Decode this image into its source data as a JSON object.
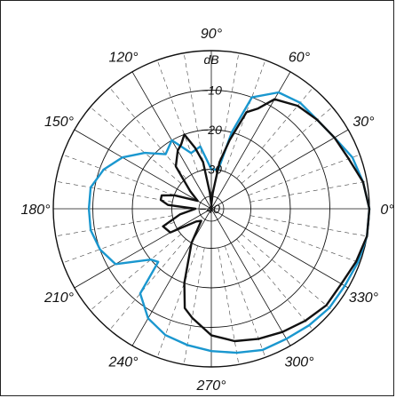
{
  "chart_data": {
    "type": "polar",
    "unit": "dB",
    "r_min_db": -40,
    "r_max_db": 0,
    "rings_db": [
      -40,
      -30,
      -20,
      -10,
      0
    ],
    "ring_labels": [
      "-40",
      "-30",
      "-20",
      "-10"
    ],
    "angle_labels": [
      "0°",
      "30°",
      "60°",
      "90°",
      "120°",
      "150°",
      "180°",
      "210°",
      "240°",
      "270°",
      "300°",
      "330°"
    ],
    "angle_label_degrees": [
      0,
      30,
      60,
      90,
      120,
      150,
      180,
      210,
      240,
      270,
      300,
      330
    ],
    "colors": {
      "blue_series": "#1a97cf",
      "black_series": "#111111",
      "grid": "#111111",
      "minor_grid": "#444444"
    },
    "series": [
      {
        "color": "blue",
        "points": [
          [
            0,
            0
          ],
          [
            10,
            -1
          ],
          [
            20,
            -2
          ],
          [
            30,
            -4
          ],
          [
            40,
            -5
          ],
          [
            50,
            -5
          ],
          [
            60,
            -6
          ],
          [
            70,
            -10
          ],
          [
            75,
            -20
          ],
          [
            80,
            -30
          ],
          [
            85,
            -30
          ],
          [
            90,
            -30
          ],
          [
            100,
            -24
          ],
          [
            110,
            -25
          ],
          [
            120,
            -20
          ],
          [
            130,
            -22
          ],
          [
            140,
            -18
          ],
          [
            150,
            -14
          ],
          [
            160,
            -11
          ],
          [
            170,
            -9
          ],
          [
            180,
            -9
          ],
          [
            190,
            -9
          ],
          [
            200,
            -10
          ],
          [
            210,
            -12
          ],
          [
            220,
            -20
          ],
          [
            225,
            -21
          ],
          [
            230,
            -12
          ],
          [
            240,
            -8
          ],
          [
            250,
            -6
          ],
          [
            260,
            -5
          ],
          [
            270,
            -4
          ],
          [
            280,
            -3
          ],
          [
            290,
            -2
          ],
          [
            300,
            -2
          ],
          [
            310,
            -1.5
          ],
          [
            320,
            -1
          ],
          [
            330,
            -1
          ],
          [
            340,
            -0.5
          ],
          [
            350,
            0
          ]
        ]
      },
      {
        "color": "black",
        "points": [
          [
            0,
            0
          ],
          [
            10,
            -1
          ],
          [
            20,
            -3
          ],
          [
            30,
            -4
          ],
          [
            40,
            -5
          ],
          [
            50,
            -6
          ],
          [
            60,
            -8
          ],
          [
            65,
            -12
          ],
          [
            70,
            -14
          ],
          [
            75,
            -22
          ],
          [
            80,
            -28
          ],
          [
            85,
            -36
          ],
          [
            90,
            -39
          ],
          [
            95,
            -36
          ],
          [
            100,
            -28
          ],
          [
            105,
            -24
          ],
          [
            110,
            -20
          ],
          [
            115,
            -22
          ],
          [
            120,
            -23
          ],
          [
            130,
            -26
          ],
          [
            140,
            -33
          ],
          [
            150,
            -36
          ],
          [
            160,
            -30
          ],
          [
            165,
            -27
          ],
          [
            170,
            -27
          ],
          [
            175,
            -29
          ],
          [
            180,
            -36
          ],
          [
            190,
            -32
          ],
          [
            200,
            -27
          ],
          [
            210,
            -28
          ],
          [
            220,
            -35
          ],
          [
            230,
            -36
          ],
          [
            240,
            -30
          ],
          [
            250,
            -20
          ],
          [
            255,
            -14
          ],
          [
            260,
            -12
          ],
          [
            270,
            -8
          ],
          [
            280,
            -6
          ],
          [
            290,
            -5
          ],
          [
            300,
            -4
          ],
          [
            310,
            -3
          ],
          [
            320,
            -2
          ],
          [
            330,
            -2
          ],
          [
            340,
            -1
          ],
          [
            350,
            0
          ]
        ]
      }
    ]
  }
}
